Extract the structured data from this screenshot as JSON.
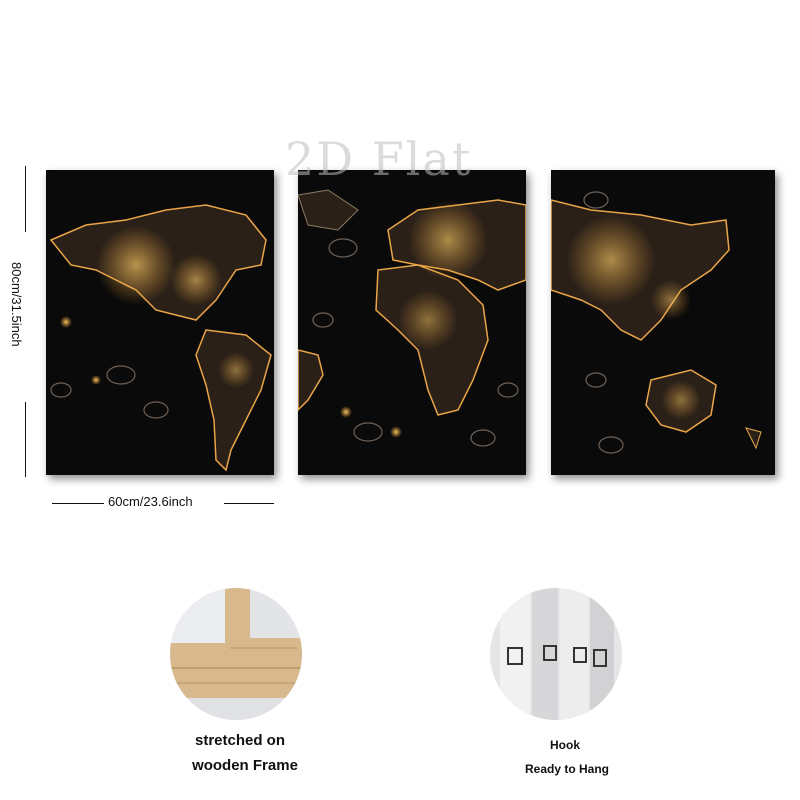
{
  "watermark": "2D Flat",
  "dimensions": {
    "height": "80cm/31.5inch",
    "width": "60cm/23.6inch"
  },
  "panels": [
    {
      "region": "americas"
    },
    {
      "region": "europe-africa"
    },
    {
      "region": "asia-australia"
    }
  ],
  "features": [
    {
      "icon": "wooden-frame-photo",
      "line1": "stretched on",
      "line2": "wooden Frame"
    },
    {
      "icon": "hook-photo",
      "line1": "Hook",
      "line2": "Ready to Hang"
    }
  ],
  "colors": {
    "panel_bg": "#0b0a0a",
    "glow": "#f0a23a",
    "land": "#2a2018"
  }
}
